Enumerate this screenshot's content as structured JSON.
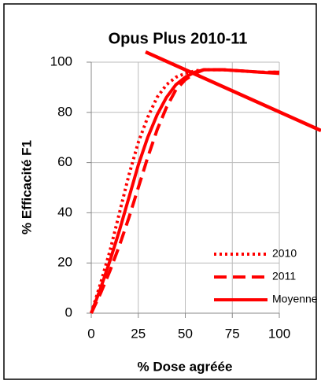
{
  "chart_data": {
    "type": "line",
    "title": "Opus Plus 2010-11",
    "x_label": "% Dose agréée",
    "y_label": "% Efficacité F1",
    "x": [
      0,
      5,
      10,
      15,
      20,
      25,
      30,
      35,
      40,
      45,
      50,
      55,
      60,
      70,
      80,
      90,
      100
    ],
    "series": [
      {
        "name": "2010",
        "color": "#ff0000",
        "dash": "dotted",
        "values": [
          0,
          12,
          25,
          40,
          55,
          68,
          78,
          86,
          91,
          94,
          95.5,
          96.5,
          97,
          97,
          96.5,
          96,
          96
        ]
      },
      {
        "name": "2011",
        "color": "#ff0000",
        "dash": "dashed",
        "values": [
          0,
          8,
          17,
          27,
          38,
          50,
          62,
          73,
          82,
          89,
          93,
          95.5,
          97,
          97,
          96.5,
          96,
          96
        ]
      },
      {
        "name": "Moyenne",
        "color": "#ff0000",
        "dash": "solid",
        "values": [
          0,
          10,
          21,
          33,
          46,
          59,
          70,
          79,
          86,
          91,
          94,
          96,
          97,
          97,
          96.5,
          96,
          95.5
        ]
      }
    ],
    "xlim": [
      0,
      100
    ],
    "xticks": [
      0,
      25,
      50,
      75,
      100
    ],
    "ylim": [
      0,
      100
    ],
    "yticks": [
      0,
      20,
      40,
      60,
      80,
      100
    ],
    "grid": true,
    "legend": "lower right"
  }
}
